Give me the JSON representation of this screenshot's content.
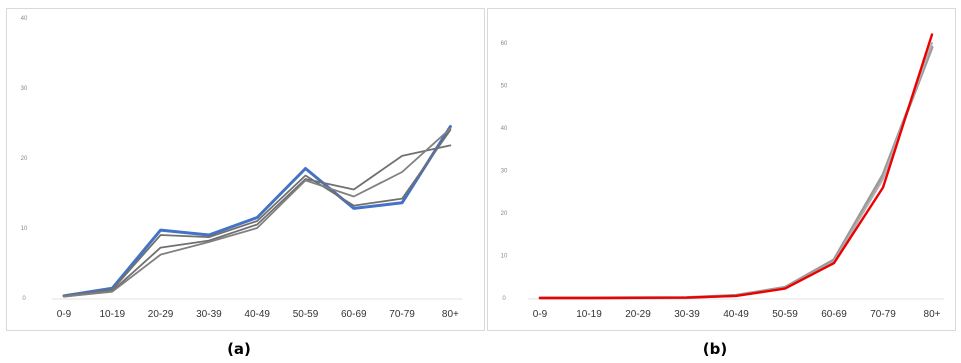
{
  "captions": {
    "a": "(a)",
    "b": "(b)"
  },
  "chart_data": [
    {
      "type": "line",
      "panel": "a",
      "categories": [
        "0-9",
        "10-19",
        "20-29",
        "30-39",
        "40-49",
        "50-59",
        "60-69",
        "70-79",
        "80+"
      ],
      "ylim": [
        0,
        40
      ],
      "yticks": [
        0,
        10,
        20,
        30,
        40
      ],
      "grid": false,
      "series": [
        {
          "color": "#4472c4",
          "width": 3,
          "values": [
            0.3,
            1.4,
            9.7,
            9.0,
            11.5,
            18.5,
            12.8,
            13.6,
            24.5
          ]
        },
        {
          "color": "#707070",
          "width": 1.8,
          "values": [
            0.3,
            1.2,
            9.0,
            8.7,
            11.0,
            17.5,
            13.2,
            14.2,
            24.0
          ]
        },
        {
          "color": "#707070",
          "width": 1.8,
          "values": [
            0.2,
            1.0,
            7.2,
            8.2,
            10.5,
            17.0,
            15.5,
            20.3,
            21.8
          ]
        },
        {
          "color": "#808080",
          "width": 1.8,
          "values": [
            0.2,
            0.9,
            6.2,
            8.0,
            10.0,
            16.8,
            14.5,
            18.0,
            24.2
          ]
        }
      ]
    },
    {
      "type": "line",
      "panel": "b",
      "categories": [
        "0-9",
        "10-19",
        "20-29",
        "30-39",
        "40-49",
        "50-59",
        "60-69",
        "70-79",
        "80+"
      ],
      "ylim": [
        0,
        60
      ],
      "yticks": [
        0,
        10,
        20,
        30,
        40,
        50,
        60
      ],
      "grid": false,
      "series": [
        {
          "color": "#9a9a9a",
          "width": 3,
          "values": [
            0.0,
            0.0,
            0.05,
            0.1,
            0.6,
            2.5,
            9.0,
            29.0,
            59.0
          ]
        },
        {
          "color": "#b0b0b0",
          "width": 2,
          "values": [
            0.0,
            0.0,
            0.05,
            0.1,
            0.5,
            2.3,
            8.5,
            28.0,
            60.0
          ]
        },
        {
          "color": "#ee0000",
          "width": 2.4,
          "values": [
            0.0,
            0.0,
            0.05,
            0.1,
            0.5,
            2.2,
            8.2,
            26.0,
            62.0
          ]
        }
      ]
    }
  ]
}
